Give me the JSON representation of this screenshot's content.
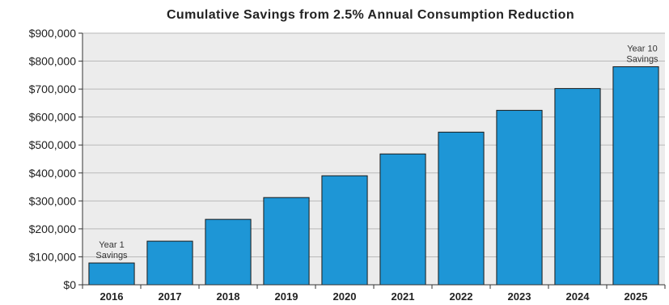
{
  "chart_data": {
    "type": "bar",
    "title": "Cumulative Savings from 2.5% Annual Consumption Reduction",
    "xlabel": "",
    "ylabel": "",
    "categories": [
      "2016",
      "2017",
      "2018",
      "2019",
      "2020",
      "2021",
      "2022",
      "2023",
      "2024",
      "2025"
    ],
    "values": [
      78000,
      156000,
      234000,
      312000,
      390000,
      468000,
      546000,
      624000,
      702000,
      780000
    ],
    "ylim": [
      0,
      900000
    ],
    "yticks": [
      0,
      100000,
      200000,
      300000,
      400000,
      500000,
      600000,
      700000,
      800000,
      900000
    ],
    "ytick_labels": [
      "$0",
      "$100,000",
      "$200,000",
      "$300,000",
      "$400,000",
      "$500,000",
      "$600,000",
      "$700,000",
      "$800,000",
      "$900,000"
    ],
    "grid": true,
    "legend": "none",
    "colors": {
      "bar": "#1e96d6",
      "bar_border": "#1a1a1a",
      "plot_background": "#ececec",
      "grid": "#b9b9b9"
    },
    "annotations": [
      {
        "category": "2016",
        "lines": [
          "Year 1",
          "Savings"
        ]
      },
      {
        "category": "2025",
        "lines": [
          "Year 10",
          "Savings"
        ]
      }
    ]
  }
}
